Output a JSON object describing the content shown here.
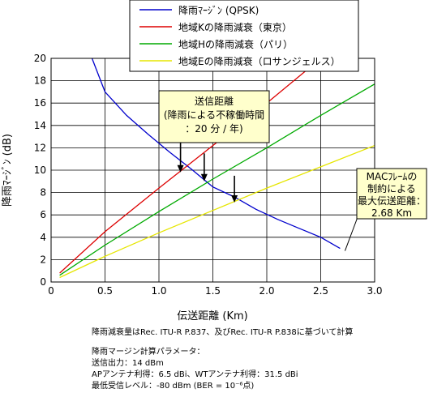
{
  "chart_data": {
    "type": "line",
    "xlabel": "伝送距離 (Km)",
    "ylabel": "降雨ﾏｰｼﾞﾝ (dB)",
    "xlim": [
      0,
      3.0
    ],
    "ylim": [
      0,
      20
    ],
    "x_ticks": [
      "0",
      "0.5",
      "1.0",
      "1.5",
      "2.0",
      "2.5",
      "3.0"
    ],
    "y_ticks": [
      "0",
      "2",
      "4",
      "6",
      "8",
      "10",
      "12",
      "14",
      "16",
      "18",
      "20"
    ],
    "grid": true,
    "legend_position": "top-center",
    "series": [
      {
        "name": "降雨ﾏｰｼﾞﾝ (QPSK)",
        "color": "#0000cc",
        "points": [
          [
            0.38,
            20.0
          ],
          [
            0.5,
            17.0
          ],
          [
            0.7,
            14.9
          ],
          [
            0.9,
            13.2
          ],
          [
            1.1,
            11.6
          ],
          [
            1.3,
            10.1
          ],
          [
            1.5,
            8.5
          ],
          [
            1.7,
            7.6
          ],
          [
            1.9,
            6.5
          ],
          [
            2.1,
            5.6
          ],
          [
            2.3,
            4.8
          ],
          [
            2.5,
            4.0
          ],
          [
            2.68,
            3.0
          ]
        ]
      },
      {
        "name": "地域Kの降雨減衰（東京）",
        "color": "#dd0000",
        "points": [
          [
            0.08,
            0.8
          ],
          [
            0.5,
            4.5
          ],
          [
            1.0,
            8.4
          ],
          [
            1.5,
            12.2
          ],
          [
            2.0,
            16.0
          ],
          [
            2.35,
            18.8
          ],
          [
            2.6,
            20.6
          ]
        ]
      },
      {
        "name": "地域Hの降雨減衰（パリ）",
        "color": "#00aa00",
        "points": [
          [
            0.08,
            0.6
          ],
          [
            0.5,
            3.3
          ],
          [
            1.0,
            6.3
          ],
          [
            1.5,
            9.2
          ],
          [
            2.0,
            12.0
          ],
          [
            2.5,
            14.9
          ],
          [
            3.0,
            17.7
          ]
        ]
      },
      {
        "name": "地域Eの降雨減衰（ロサンジェルス）",
        "color": "#e6e600",
        "points": [
          [
            0.08,
            0.4
          ],
          [
            0.5,
            2.3
          ],
          [
            1.0,
            4.4
          ],
          [
            1.5,
            6.4
          ],
          [
            2.0,
            8.4
          ],
          [
            2.5,
            10.3
          ],
          [
            3.0,
            12.2
          ]
        ]
      }
    ],
    "arrows": [
      {
        "x": 1.2,
        "y_from": 12.5,
        "y_to": 9.8
      },
      {
        "x": 1.42,
        "y_from": 11.5,
        "y_to": 9.0
      },
      {
        "x": 1.7,
        "y_from": 9.5,
        "y_to": 7.1
      }
    ],
    "annotations": [
      {
        "id": "outage",
        "lines": [
          "送信距離",
          "(降雨による不稼働時間",
          "：20 分 / 年)"
        ]
      },
      {
        "id": "mac",
        "lines": [
          "MACﾌﾚｰﾑの",
          "制約による",
          "最大伝送距離：",
          "2.68 Km"
        ],
        "point": [
          2.68,
          3.0
        ]
      }
    ]
  },
  "notes": {
    "source": "降雨減衰量はRec. ITU-R P.837、及びRec. ITU-R P.838に基づいて計算",
    "params_title": "降雨マージン計算パラメータ：",
    "params": [
      "送信出力：14 dBm",
      "APアンテナ利得：6.5 dBi、WTアンテナ利得：31.5 dBi",
      "最低受信レベル：-80 dBm (BER = 10⁻⁶点)"
    ]
  }
}
